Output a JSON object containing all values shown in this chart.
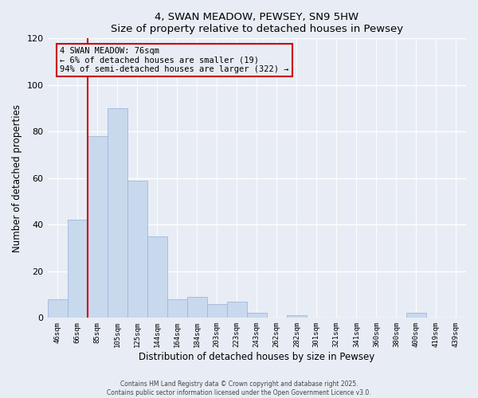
{
  "title": "4, SWAN MEADOW, PEWSEY, SN9 5HW",
  "subtitle": "Size of property relative to detached houses in Pewsey",
  "xlabel": "Distribution of detached houses by size in Pewsey",
  "ylabel": "Number of detached properties",
  "categories": [
    "46sqm",
    "66sqm",
    "85sqm",
    "105sqm",
    "125sqm",
    "144sqm",
    "164sqm",
    "184sqm",
    "203sqm",
    "223sqm",
    "243sqm",
    "262sqm",
    "282sqm",
    "301sqm",
    "321sqm",
    "341sqm",
    "360sqm",
    "380sqm",
    "400sqm",
    "419sqm",
    "439sqm"
  ],
  "values": [
    8,
    42,
    78,
    90,
    59,
    35,
    8,
    9,
    6,
    7,
    2,
    0,
    1,
    0,
    0,
    0,
    0,
    0,
    2,
    0,
    0
  ],
  "bar_color": "#c8d9ee",
  "bar_edge_color": "#a0b8d8",
  "reference_line_color": "#cc0000",
  "reference_line_x": 1.5,
  "ylim": [
    0,
    120
  ],
  "yticks": [
    0,
    20,
    40,
    60,
    80,
    100,
    120
  ],
  "annotation_title": "4 SWAN MEADOW: 76sqm",
  "annotation_line1": "← 6% of detached houses are smaller (19)",
  "annotation_line2": "94% of semi-detached houses are larger (322) →",
  "background_color": "#e8edf5",
  "grid_color": "#ffffff",
  "footer_line1": "Contains HM Land Registry data © Crown copyright and database right 2025.",
  "footer_line2": "Contains public sector information licensed under the Open Government Licence v3.0."
}
